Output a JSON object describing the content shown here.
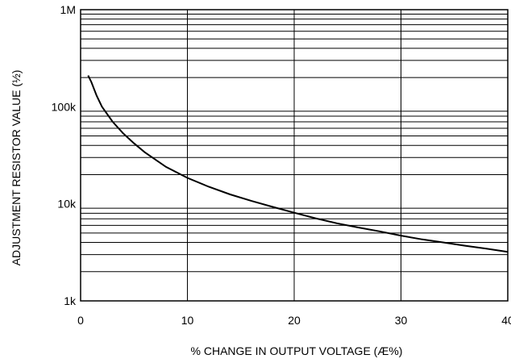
{
  "chart_data": {
    "type": "line",
    "title": "",
    "xlabel": "% CHANGE IN OUTPUT VOLTAGE (Æ%)",
    "ylabel": "ADJUSTMENT RESISTOR VALUE (½)",
    "xlim": [
      0,
      40
    ],
    "ylim": [
      1000,
      1000000
    ],
    "yscale": "log",
    "grid": true,
    "x_ticks": [
      0,
      10,
      20,
      30,
      40
    ],
    "x_tick_labels": [
      "0",
      "10",
      "20",
      "30",
      "40"
    ],
    "y_ticks": [
      1000,
      10000,
      100000,
      1000000
    ],
    "y_tick_labels": [
      "1k",
      "10k",
      "100k",
      "1M"
    ],
    "series": [
      {
        "color": "#000000",
        "x": [
          0.7,
          1,
          1.5,
          2,
          3,
          4,
          5,
          6,
          8,
          10,
          12,
          14,
          16,
          18,
          20,
          22,
          24,
          26,
          28,
          30,
          32,
          34,
          36,
          38,
          40
        ],
        "y": [
          210000,
          180000,
          130000,
          100000,
          70000,
          53000,
          42000,
          34000,
          24000,
          18500,
          15000,
          12500,
          10700,
          9300,
          8100,
          7100,
          6300,
          5700,
          5200,
          4700,
          4300,
          4000,
          3700,
          3450,
          3200
        ]
      }
    ]
  }
}
